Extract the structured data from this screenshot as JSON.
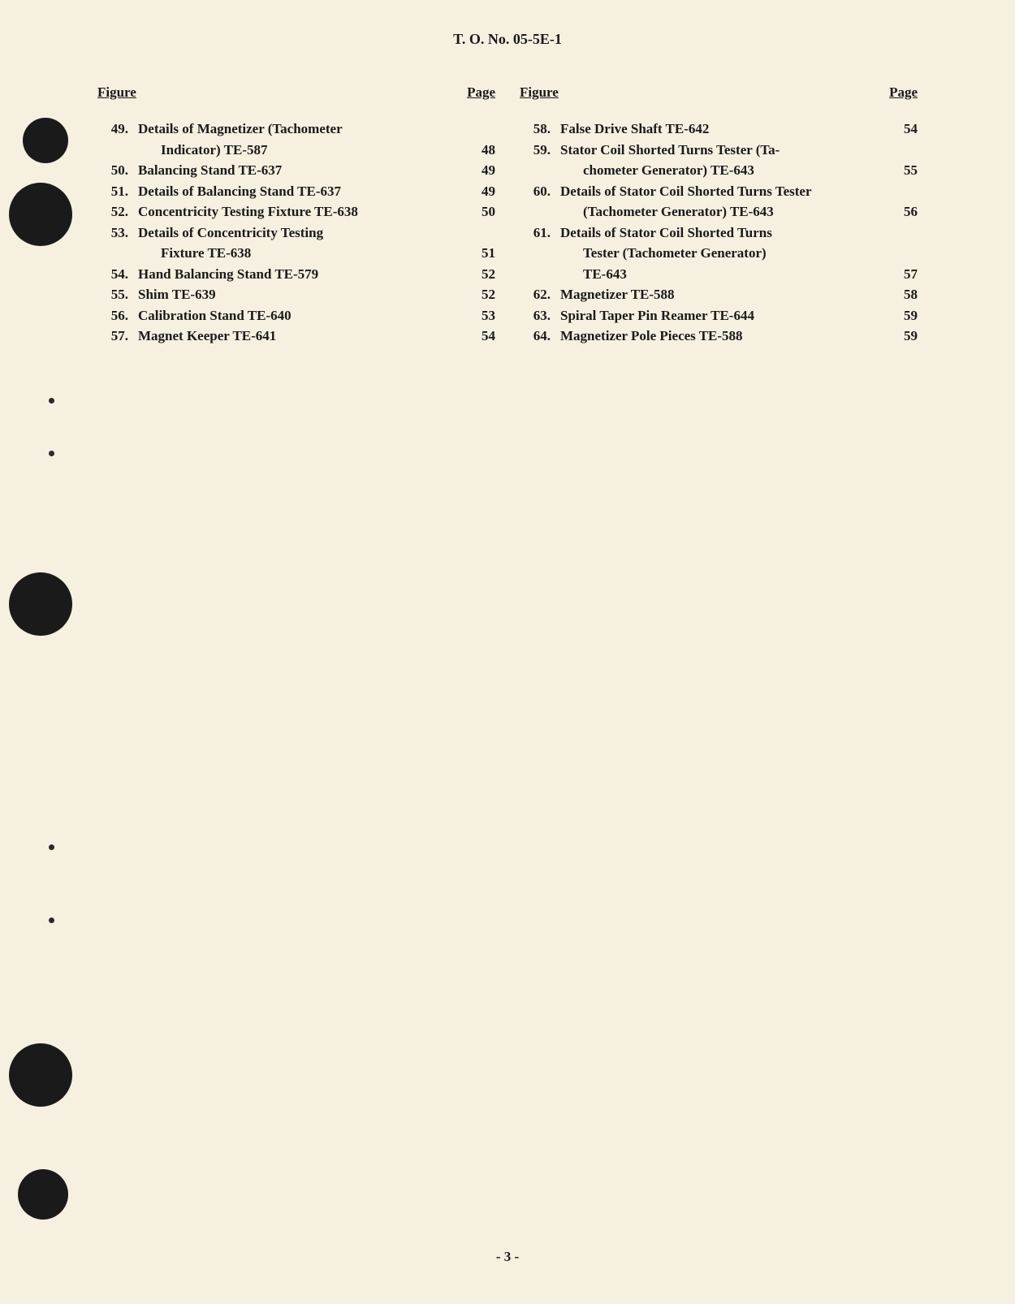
{
  "header": {
    "title": "T. O. No. 05-5E-1"
  },
  "columnHeaders": {
    "figure": "Figure",
    "page": "Page"
  },
  "leftColumn": [
    {
      "num": "49.",
      "title": "Details of Magnetizer (Tachometer",
      "page": ""
    },
    {
      "num": "",
      "title": "Indicator) TE-587",
      "page": "48",
      "indent": true
    },
    {
      "num": "50.",
      "title": "Balancing Stand TE-637",
      "page": "49"
    },
    {
      "num": "51.",
      "title": "Details of Balancing Stand TE-637",
      "page": "49"
    },
    {
      "num": "52.",
      "title": "Concentricity Testing Fixture TE-638",
      "page": "50"
    },
    {
      "num": "53.",
      "title": "Details of Concentricity Testing",
      "page": ""
    },
    {
      "num": "",
      "title": "Fixture TE-638",
      "page": "51",
      "indent": true
    },
    {
      "num": "54.",
      "title": "Hand Balancing Stand TE-579",
      "page": "52"
    },
    {
      "num": "55.",
      "title": "Shim TE-639",
      "page": "52"
    },
    {
      "num": "56.",
      "title": "Calibration Stand TE-640",
      "page": "53"
    },
    {
      "num": "57.",
      "title": "Magnet Keeper TE-641",
      "page": "54"
    }
  ],
  "rightColumn": [
    {
      "num": "58.",
      "title": "False Drive Shaft TE-642",
      "page": "54"
    },
    {
      "num": "59.",
      "title": "Stator Coil Shorted Turns Tester (Ta-",
      "page": ""
    },
    {
      "num": "",
      "title": "chometer Generator) TE-643",
      "page": "55",
      "indent": true
    },
    {
      "num": "60.",
      "title": "Details of Stator Coil Shorted Turns Tester",
      "page": ""
    },
    {
      "num": "",
      "title": "(Tachometer Generator) TE-643",
      "page": "56",
      "indent": true
    },
    {
      "num": "61.",
      "title": "Details of Stator Coil Shorted Turns",
      "page": ""
    },
    {
      "num": "",
      "title": "Tester (Tachometer Generator)",
      "page": "",
      "indent": true
    },
    {
      "num": "",
      "title": "TE-643",
      "page": "57",
      "indent": true
    },
    {
      "num": "62.",
      "title": "Magnetizer TE-588",
      "page": "58"
    },
    {
      "num": "63.",
      "title": "Spiral Taper Pin Reamer TE-644",
      "page": "59"
    },
    {
      "num": "64.",
      "title": "Magnetizer Pole Pieces TE-588",
      "page": "59"
    }
  ],
  "pageNumber": "- 3 -"
}
